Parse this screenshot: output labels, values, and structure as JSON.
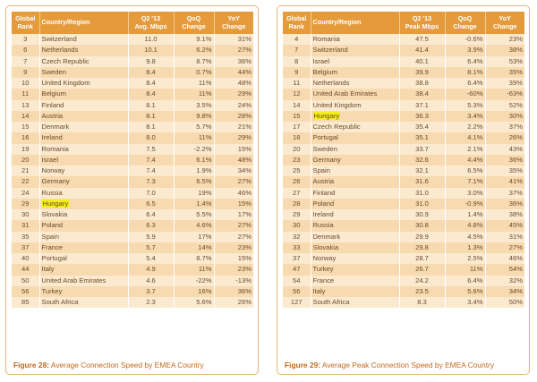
{
  "figure28": {
    "headers": [
      "Global\nRank",
      "Country/Region",
      "Q2 '13\nAvg. Mbps",
      "QoQ\nChange",
      "YoY\nChange"
    ],
    "rows": [
      [
        "3",
        "Switzerland",
        "11.0",
        "9.1%",
        "31%"
      ],
      [
        "6",
        "Netherlands",
        "10.1",
        "6.2%",
        "27%"
      ],
      [
        "7",
        "Czech Republic",
        "9.8",
        "8.7%",
        "36%"
      ],
      [
        "9",
        "Sweden",
        "8.4",
        "0.7%",
        "44%"
      ],
      [
        "10",
        "United Kingdom",
        "8.4",
        "11%",
        "48%"
      ],
      [
        "11",
        "Belgium",
        "8.4",
        "11%",
        "29%"
      ],
      [
        "13",
        "Finland",
        "8.1",
        "3.5%",
        "24%"
      ],
      [
        "14",
        "Austria",
        "8.1",
        "9.8%",
        "28%"
      ],
      [
        "15",
        "Denmark",
        "8.1",
        "5.7%",
        "21%"
      ],
      [
        "16",
        "Ireland",
        "8.0",
        "11%",
        "29%"
      ],
      [
        "19",
        "Romania",
        "7.5",
        "-2.2%",
        "15%"
      ],
      [
        "20",
        "Israel",
        "7.4",
        "6.1%",
        "48%"
      ],
      [
        "21",
        "Norway",
        "7.4",
        "1.9%",
        "34%"
      ],
      [
        "22",
        "Germany",
        "7.3",
        "6.5%",
        "27%"
      ],
      [
        "24",
        "Russia",
        "7.0",
        "19%",
        "46%"
      ],
      [
        "29",
        "Hungary",
        "6.5",
        "1.4%",
        "15%"
      ],
      [
        "30",
        "Slovakia",
        "6.4",
        "5.5%",
        "17%"
      ],
      [
        "31",
        "Poland",
        "6.3",
        "4.6%",
        "27%"
      ],
      [
        "35",
        "Spain",
        "5.9",
        "17%",
        "27%"
      ],
      [
        "37",
        "France",
        "5.7",
        "14%",
        "23%"
      ],
      [
        "40",
        "Portugal",
        "5.4",
        "8.7%",
        "15%"
      ],
      [
        "44",
        "Italy",
        "4.9",
        "11%",
        "23%"
      ],
      [
        "50",
        "United Arab Emirates",
        "4.6",
        "-22%",
        "-13%"
      ],
      [
        "56",
        "Turkey",
        "3.7",
        "16%",
        "36%"
      ],
      [
        "85",
        "South Africa",
        "2.3",
        "5.6%",
        "26%"
      ]
    ],
    "highlight_country": "Hungary",
    "caption_label": "Figure 28:",
    "caption_text": " Average Connection Speed by EMEA Country"
  },
  "figure29": {
    "headers": [
      "Global\nRank",
      "Country/Region",
      "Q2 '13\nPeak Mbps",
      "QoQ\nChange",
      "YoY\nChange"
    ],
    "rows": [
      [
        "4",
        "Romania",
        "47.5",
        "-0.6%",
        "23%"
      ],
      [
        "7",
        "Switzerland",
        "41.4",
        "3.9%",
        "38%"
      ],
      [
        "8",
        "Israel",
        "40.1",
        "6.4%",
        "53%"
      ],
      [
        "9",
        "Belgium",
        "39.9",
        "8.1%",
        "35%"
      ],
      [
        "11",
        "Netherlands",
        "38.8",
        "6.4%",
        "39%"
      ],
      [
        "12",
        "United Arab Emirates",
        "38.4",
        "-60%",
        "-63%"
      ],
      [
        "14",
        "United Kingdom",
        "37.1",
        "5.3%",
        "52%"
      ],
      [
        "15",
        "Hungary",
        "36.3",
        "3.4%",
        "30%"
      ],
      [
        "17",
        "Czech Republic",
        "35.4",
        "2.2%",
        "37%"
      ],
      [
        "18",
        "Portugal",
        "35.1",
        "4.1%",
        "26%"
      ],
      [
        "20",
        "Sweden",
        "33.7",
        "2.1%",
        "43%"
      ],
      [
        "23",
        "Germany",
        "32.6",
        "4.4%",
        "36%"
      ],
      [
        "25",
        "Spain",
        "32.1",
        "6.5%",
        "35%"
      ],
      [
        "26",
        "Austria",
        "31.6",
        "7.1%",
        "41%"
      ],
      [
        "27",
        "Finland",
        "31.0",
        "3.0%",
        "37%"
      ],
      [
        "28",
        "Poland",
        "31.0",
        "-0.9%",
        "36%"
      ],
      [
        "29",
        "Ireland",
        "30.9",
        "1.4%",
        "38%"
      ],
      [
        "30",
        "Russia",
        "30.8",
        "4.8%",
        "45%"
      ],
      [
        "32",
        "Denmark",
        "29.9",
        "4.5%",
        "31%"
      ],
      [
        "33",
        "Slovakia",
        "29.8",
        "1.3%",
        "27%"
      ],
      [
        "37",
        "Norway",
        "28.7",
        "2.5%",
        "46%"
      ],
      [
        "47",
        "Turkey",
        "26.7",
        "11%",
        "54%"
      ],
      [
        "54",
        "France",
        "24.2",
        "6.4%",
        "32%"
      ],
      [
        "56",
        "Italy",
        "23.5",
        "5.6%",
        "34%"
      ],
      [
        "127",
        "South Africa",
        "8.3",
        "3.4%",
        "50%"
      ]
    ],
    "highlight_country": "Hungary",
    "caption_label": "Figure 29:",
    "caption_text": " Average Peak Connection Speed by EMEA Country"
  },
  "colors": {
    "header_bg": "#e59b3c",
    "row_light": "#fbead0",
    "row_dark": "#f7dab0",
    "text": "#6b4a2a",
    "caption": "#c06a1e",
    "highlight": "#f2ef1a",
    "border": "#e6b473"
  }
}
